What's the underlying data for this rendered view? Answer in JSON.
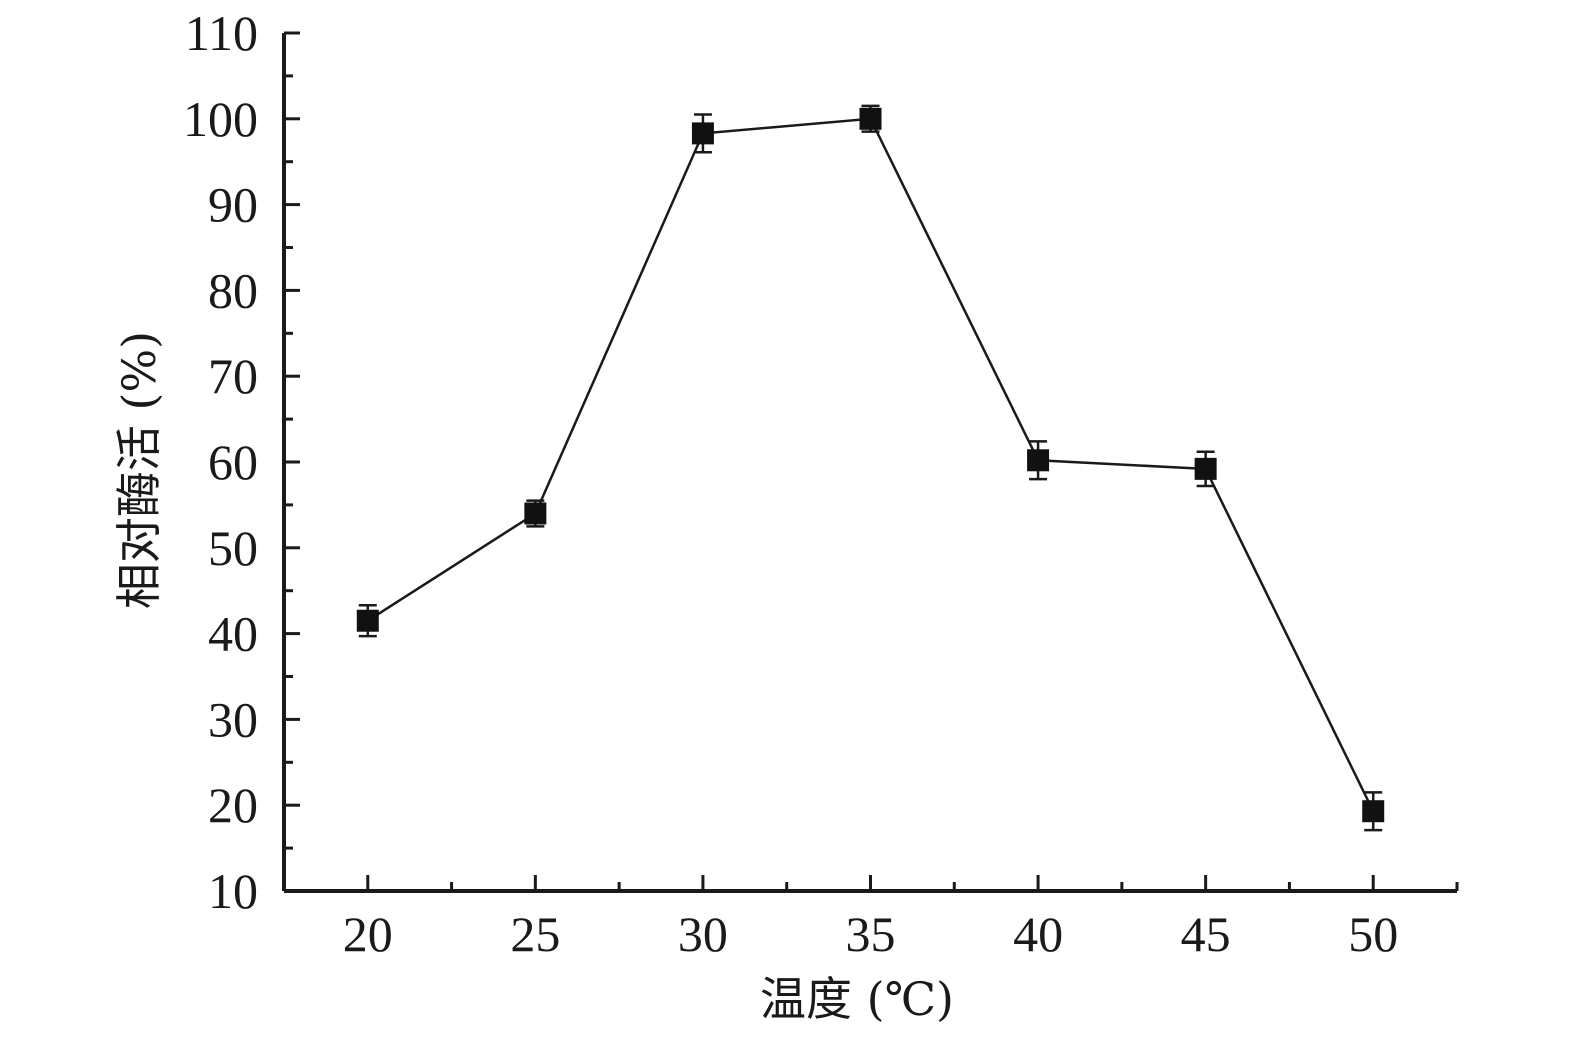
{
  "chart_data": {
    "type": "line",
    "xlabel": "温度 (℃)",
    "ylabel": "相对酶活 (%)",
    "xlim": [
      17.5,
      52.5
    ],
    "ylim": [
      10,
      110
    ],
    "x_ticks": [
      "20",
      "25",
      "30",
      "35",
      "40",
      "45",
      "50"
    ],
    "y_ticks": [
      "10",
      "20",
      "30",
      "40",
      "50",
      "60",
      "70",
      "80",
      "90",
      "100",
      "110"
    ],
    "grid": false,
    "marker": "square",
    "series": [
      {
        "x": [
          20,
          25,
          30,
          35,
          40,
          45,
          50
        ],
        "y": [
          41.5,
          54,
          98.3,
          100,
          60.2,
          59.2,
          19.3
        ],
        "error": [
          1.8,
          1.5,
          2.2,
          1.5,
          2.2,
          2.0,
          2.2
        ]
      }
    ]
  }
}
